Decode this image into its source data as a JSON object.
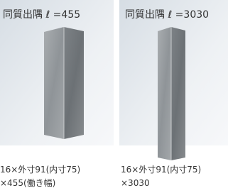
{
  "items": [
    {
      "label": "同質出隅 ℓ =455",
      "caption": [
        "16×外寸91(内寸75)",
        "×455(働き幅)"
      ]
    },
    {
      "label": "同質出隅 ℓ =3030",
      "caption": [
        "16×外寸91(内寸75)",
        "×3030"
      ]
    }
  ]
}
